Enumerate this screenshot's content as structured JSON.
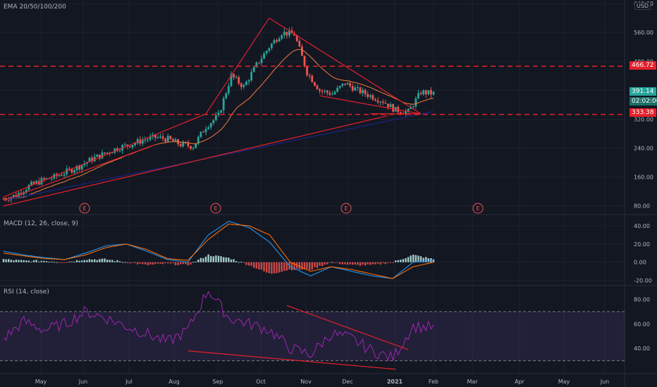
{
  "panes": {
    "price_label": "EMA 20/50/100/200",
    "macd_label": "MACD (12, 26, close, 9)",
    "rsi_label": "RSI (14, close)",
    "currency": "USD"
  },
  "tags": {
    "resistance": "466.72",
    "current": "391.14",
    "timer": "02:02:00",
    "support": "333.38"
  },
  "earnings_marker": "E",
  "colors": {
    "bg": "#131722",
    "grid": "#1e222d",
    "up": "#26a69a",
    "down": "#ef5350",
    "ema_short": "#f57c3a",
    "ema_long": "#1a237e",
    "macd": "#2196f3",
    "signal": "#ff6d00",
    "rsi": "#9c27b0",
    "trend": "#e4212b"
  },
  "chart_data": [
    {
      "type": "candlestick",
      "title": "EMA 20/50/100/200",
      "y_ticks": [
        "640.00",
        "560.00",
        "480.00",
        "400.00",
        "320.00",
        "240.00",
        "160.00",
        "80.00"
      ],
      "ylim": [
        60,
        650
      ],
      "x_ticks": [
        "May",
        "Jun",
        "Jul",
        "Aug",
        "Sep",
        "Oct",
        "Nov",
        "Dec",
        "2021",
        "Feb",
        "Mar",
        "Apr",
        "May",
        "Jun"
      ],
      "horizontal_levels": [
        466.72,
        333.38
      ],
      "current_price": 391.14,
      "close_series_approx": [
        [
          0,
          100
        ],
        [
          5,
          110
        ],
        [
          10,
          135
        ],
        [
          15,
          150
        ],
        [
          20,
          160
        ],
        [
          25,
          175
        ],
        [
          30,
          190
        ],
        [
          35,
          210
        ],
        [
          40,
          225
        ],
        [
          45,
          240
        ],
        [
          50,
          250
        ],
        [
          55,
          262
        ],
        [
          60,
          270
        ],
        [
          65,
          265
        ],
        [
          70,
          250
        ],
        [
          75,
          245
        ],
        [
          80,
          300
        ],
        [
          85,
          330
        ],
        [
          90,
          440
        ],
        [
          95,
          410
        ],
        [
          100,
          470
        ],
        [
          105,
          520
        ],
        [
          110,
          560
        ],
        [
          115,
          555
        ],
        [
          120,
          450
        ],
        [
          125,
          400
        ],
        [
          130,
          390
        ],
        [
          135,
          420
        ],
        [
          140,
          400
        ],
        [
          145,
          385
        ],
        [
          150,
          370
        ],
        [
          155,
          345
        ],
        [
          160,
          340
        ],
        [
          165,
          395
        ],
        [
          170,
          391
        ]
      ],
      "ema_series": [
        {
          "name": "EMA 20/50",
          "color": "#f57c3a"
        },
        {
          "name": "EMA 200",
          "color": "#1a237e"
        }
      ],
      "earnings_markers": [
        "Jun",
        "Sep",
        "Dec",
        "Mar"
      ]
    },
    {
      "type": "line",
      "title": "MACD (12, 26, close, 9)",
      "y_ticks": [
        "40.00",
        "20.00",
        "0.00",
        "-20.00"
      ],
      "ylim": [
        -25,
        50
      ],
      "series": [
        {
          "name": "MACD",
          "values_approx": [
            12,
            8,
            5,
            3,
            10,
            18,
            20,
            12,
            3,
            0,
            30,
            45,
            38,
            22,
            -5,
            -15,
            -5,
            -10,
            -15,
            -18,
            0,
            2
          ]
        },
        {
          "name": "Signal",
          "values_approx": [
            10,
            7,
            4,
            3,
            8,
            16,
            20,
            14,
            4,
            2,
            25,
            42,
            40,
            30,
            0,
            -10,
            -5,
            -8,
            -13,
            -18,
            -5,
            0
          ]
        }
      ]
    },
    {
      "type": "line",
      "title": "RSI (14, close)",
      "y_ticks": [
        "80.00",
        "60.00",
        "40.00"
      ],
      "ylim": [
        20,
        90
      ],
      "bands": [
        70,
        30
      ],
      "series": [
        {
          "name": "RSI",
          "values_approx": [
            48,
            62,
            55,
            60,
            70,
            65,
            58,
            52,
            45,
            55,
            88,
            65,
            60,
            55,
            40,
            35,
            52,
            48,
            38,
            32,
            58,
            57
          ]
        }
      ]
    }
  ]
}
